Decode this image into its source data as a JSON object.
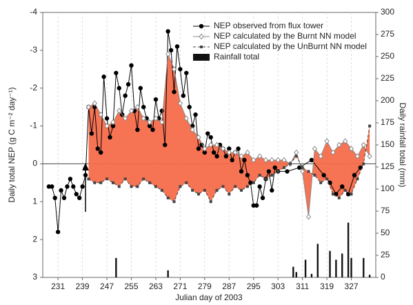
{
  "chart_data": {
    "type": "line",
    "x_label": "Julian day of 2003",
    "y_label": "Daily total NEP (g C m⁻² day⁻¹)",
    "y2_label": "Daily rainfall total (mm)",
    "xlim": [
      226,
      335
    ],
    "xticks": [
      231,
      239,
      247,
      255,
      263,
      271,
      279,
      287,
      295,
      303,
      311,
      319,
      327
    ],
    "ylim": [
      -4,
      3
    ],
    "yticks": [
      -4,
      -3,
      -2,
      -1,
      0,
      1,
      2,
      3
    ],
    "y_inverted": true,
    "y2lim": [
      0,
      300
    ],
    "y2ticks": [
      0,
      25,
      50,
      75,
      100,
      125,
      150,
      175,
      200,
      225,
      250,
      275,
      300
    ],
    "grid": true,
    "legend": "top-right",
    "fill_between": {
      "series": [
        1,
        2
      ],
      "color": "#f56b4b"
    },
    "series": [
      {
        "name": "NEP observed from flux tower",
        "color": "#000000",
        "marker": "circle",
        "dash": false,
        "x": [
          228,
          229,
          230,
          231,
          232,
          233,
          234,
          235,
          236,
          237,
          238,
          239,
          240,
          241,
          242,
          243,
          244,
          245,
          246,
          247,
          248,
          249,
          250,
          251,
          252,
          253,
          254,
          255,
          256,
          257,
          258,
          259,
          260,
          261,
          262,
          263,
          264,
          265,
          266,
          267,
          268,
          269,
          270,
          271,
          272,
          273,
          274,
          275,
          276,
          277,
          278,
          279,
          280,
          281,
          282,
          283,
          284,
          285,
          286,
          287,
          288,
          289,
          290,
          291,
          292,
          293,
          294,
          295,
          296,
          297,
          298,
          299,
          300,
          301,
          302,
          303,
          306,
          310,
          314,
          318,
          320,
          322,
          324,
          326,
          328,
          330
        ],
        "values": [
          0.6,
          0.6,
          0.9,
          1.8,
          0.7,
          0.9,
          0.6,
          0.4,
          0.6,
          0.8,
          0.9,
          0.6,
          0.3,
          -1.5,
          -0.8,
          -1.5,
          -0.4,
          -0.3,
          -2.3,
          -1.2,
          -0.7,
          -1.0,
          -2.4,
          -2.0,
          -1.3,
          -1.8,
          -2.1,
          -2.6,
          -1.4,
          -0.9,
          -2.0,
          -1.5,
          -1.2,
          -1.0,
          -0.9,
          -1.7,
          -1.2,
          -1.4,
          -0.5,
          -3.5,
          -3.0,
          -1.9,
          -3.1,
          -2.5,
          -1.8,
          -2.4,
          -1.5,
          -1.0,
          -1.3,
          -0.4,
          -0.5,
          -0.3,
          -0.8,
          -0.7,
          -0.3,
          -0.2,
          -0.5,
          -0.4,
          -0.2,
          -0.4,
          -0.1,
          -0.3,
          -0.4,
          0.2,
          -0.1,
          0.3,
          0.5,
          1.1,
          1.1,
          0.6,
          0.9,
          0.4,
          0.2,
          0.7,
          0.1,
          0.2,
          0.2,
          0.1,
          -0.1,
          0.3,
          0.5,
          0.8,
          0.6,
          0.8,
          0.3,
          0.1
        ]
      },
      {
        "name": "NEP calculated by the Burnt NN model",
        "color": "#888888",
        "marker": "diamond",
        "dash": false,
        "x": [
          241,
          243,
          245,
          247,
          249,
          251,
          253,
          255,
          257,
          259,
          261,
          263,
          265,
          267,
          269,
          271,
          273,
          275,
          277,
          279,
          281,
          283,
          285,
          287,
          289,
          291,
          293,
          295,
          297,
          299,
          301,
          303,
          305,
          307,
          309,
          311,
          313,
          315,
          317,
          319,
          321,
          323,
          325,
          327,
          329,
          331,
          333
        ],
        "values": [
          -1.5,
          -1.6,
          -1.3,
          -1.0,
          -1.1,
          -1.4,
          -1.2,
          -1.4,
          -1.5,
          -1.2,
          -1.1,
          -1.2,
          -1.1,
          -2.9,
          -2.5,
          -1.6,
          -1.2,
          -0.9,
          -0.7,
          -0.4,
          -0.5,
          -0.5,
          -0.4,
          -0.3,
          -0.3,
          -0.2,
          -0.3,
          -0.1,
          -0.2,
          -0.1,
          -0.1,
          -0.1,
          -0.1,
          0.0,
          -0.3,
          0.2,
          1.4,
          -0.4,
          -0.2,
          -0.6,
          -0.3,
          -0.5,
          -0.6,
          -0.4,
          -0.2,
          -0.5,
          -0.2
        ]
      },
      {
        "name": "NEP calculated by the UnBurnt NN model",
        "color": "#444444",
        "marker": "square",
        "dash": true,
        "x": [
          241,
          243,
          245,
          247,
          249,
          251,
          253,
          255,
          257,
          259,
          261,
          263,
          265,
          267,
          269,
          271,
          273,
          275,
          277,
          279,
          281,
          283,
          285,
          287,
          289,
          291,
          293,
          295,
          297,
          299,
          301,
          303,
          305,
          307,
          309,
          311,
          313,
          315,
          317,
          319,
          321,
          323,
          325,
          327,
          329,
          331,
          333
        ],
        "values": [
          0.4,
          0.5,
          0.5,
          0.4,
          0.5,
          0.6,
          0.4,
          0.6,
          0.6,
          0.4,
          0.5,
          0.6,
          0.7,
          0.9,
          1.0,
          0.6,
          0.5,
          0.7,
          0.8,
          0.7,
          1.0,
          0.7,
          0.6,
          0.8,
          0.6,
          0.7,
          0.6,
          0.5,
          0.3,
          0.4,
          0.3,
          0.2,
          0.1,
          0.0,
          -0.2,
          0.1,
          0.2,
          0.3,
          0.5,
          0.4,
          0.8,
          0.9,
          0.7,
          0.8,
          0.4,
          0.0,
          -1.0
        ]
      },
      {
        "name": "Rainfall total",
        "color": "#111111",
        "type": "bar",
        "axis": "y2",
        "x": [
          250,
          267,
          308,
          309,
          312,
          314,
          316,
          320,
          322,
          324,
          326,
          327,
          331,
          333
        ],
        "values": [
          22,
          8,
          12,
          6,
          20,
          4,
          38,
          30,
          20,
          27,
          62,
          22,
          22,
          3
        ]
      }
    ]
  }
}
